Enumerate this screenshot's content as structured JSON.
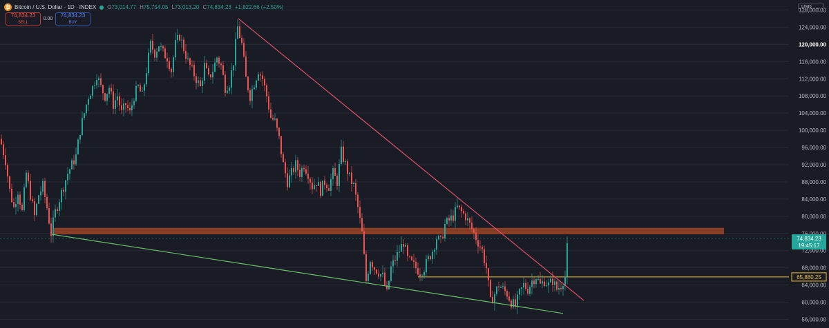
{
  "header": {
    "symbol": "Bitcoin / U.S. Dollar · 1D · INDEX",
    "coin_glyph": "₿",
    "ohlc": [
      {
        "label": "O",
        "value": "73,014.77"
      },
      {
        "label": "H",
        "value": "75,754.05"
      },
      {
        "label": "L",
        "value": "73,013.20"
      },
      {
        "label": "C",
        "value": "74,834.23"
      }
    ],
    "change": "+1,822.66 (+2.50%)"
  },
  "trade": {
    "sell_price": "74,834.23",
    "sell_label": "SELL",
    "spread": "0.00",
    "buy_price": "74,834.23",
    "buy_label": "BUY"
  },
  "currency": "USD",
  "colors": {
    "background": "#1a1c25",
    "up": "#26a69a",
    "down": "#ef5350",
    "resistance_line": "#e0506c",
    "support_line": "#6abf69",
    "zone": "#b34b25",
    "level_line": "#f2c12e"
  },
  "chart_data": {
    "type": "candlestick",
    "ylim": [
      54000,
      130000
    ],
    "y_ticks": [
      56000,
      60000,
      64000,
      68000,
      72000,
      76000,
      80000,
      84000,
      88000,
      92000,
      96000,
      100000,
      104000,
      108000,
      112000,
      116000,
      120000,
      124000,
      128000
    ],
    "y_tick_labels": [
      "56,000.00",
      "60,000.00",
      "64,000.00",
      "68,000.00",
      "72,000.00",
      "76,000.00",
      "80,000.00",
      "84,000.00",
      "88,000.00",
      "92,000.00",
      "96,000.00",
      "100,000.00",
      "104,000.00",
      "108,000.00",
      "112,000.00",
      "116,000.00",
      "120,000.00",
      "124,000.00",
      "128,000.00"
    ],
    "bold_tick": 120000,
    "price_path": [
      [
        0,
        98000
      ],
      [
        8,
        93000
      ],
      [
        14,
        86000
      ],
      [
        20,
        82000
      ],
      [
        26,
        86000
      ],
      [
        32,
        81000
      ],
      [
        38,
        90000
      ],
      [
        44,
        85000
      ],
      [
        50,
        80000
      ],
      [
        56,
        85000
      ],
      [
        62,
        87000
      ],
      [
        68,
        82000
      ],
      [
        74,
        76000
      ],
      [
        80,
        81000
      ],
      [
        86,
        84000
      ],
      [
        92,
        87000
      ],
      [
        98,
        90000
      ],
      [
        104,
        92000
      ],
      [
        110,
        94000
      ],
      [
        116,
        100000
      ],
      [
        122,
        104000
      ],
      [
        128,
        108000
      ],
      [
        134,
        110000
      ],
      [
        140,
        113000
      ],
      [
        146,
        110000
      ],
      [
        152,
        108000
      ],
      [
        158,
        110000
      ],
      [
        164,
        106000
      ],
      [
        170,
        108000
      ],
      [
        176,
        104000
      ],
      [
        182,
        106000
      ],
      [
        188,
        104000
      ],
      [
        194,
        108000
      ],
      [
        200,
        110000
      ],
      [
        206,
        108000
      ],
      [
        212,
        114000
      ],
      [
        218,
        120000
      ],
      [
        224,
        118000
      ],
      [
        230,
        120000
      ],
      [
        236,
        118000
      ],
      [
        242,
        117000
      ],
      [
        248,
        114000
      ],
      [
        254,
        120000
      ],
      [
        260,
        122000
      ],
      [
        266,
        119000
      ],
      [
        272,
        116000
      ],
      [
        278,
        114000
      ],
      [
        284,
        112000
      ],
      [
        290,
        110000
      ],
      [
        296,
        115000
      ],
      [
        302,
        112000
      ],
      [
        308,
        114000
      ],
      [
        314,
        117000
      ],
      [
        320,
        115000
      ],
      [
        326,
        110000
      ],
      [
        332,
        111000
      ],
      [
        338,
        116000
      ],
      [
        344,
        124000
      ],
      [
        350,
        120000
      ],
      [
        356,
        112000
      ],
      [
        362,
        108000
      ],
      [
        368,
        111000
      ],
      [
        374,
        114000
      ],
      [
        380,
        112000
      ],
      [
        386,
        108000
      ],
      [
        392,
        103000
      ],
      [
        398,
        102000
      ],
      [
        404,
        98000
      ],
      [
        410,
        92000
      ],
      [
        416,
        88000
      ],
      [
        422,
        90000
      ],
      [
        428,
        92000
      ],
      [
        434,
        90000
      ],
      [
        440,
        92000
      ],
      [
        446,
        90000
      ],
      [
        452,
        87000
      ],
      [
        458,
        88000
      ],
      [
        464,
        86000
      ],
      [
        470,
        88000
      ],
      [
        476,
        87000
      ],
      [
        482,
        90000
      ],
      [
        488,
        88000
      ],
      [
        494,
        95000
      ],
      [
        500,
        92000
      ],
      [
        506,
        89000
      ],
      [
        512,
        87000
      ],
      [
        518,
        82000
      ],
      [
        524,
        76000
      ],
      [
        530,
        65000
      ],
      [
        536,
        70000
      ],
      [
        542,
        68000
      ],
      [
        548,
        67000
      ],
      [
        554,
        66000
      ],
      [
        560,
        62000
      ],
      [
        566,
        68000
      ],
      [
        572,
        70000
      ],
      [
        578,
        72000
      ],
      [
        584,
        74000
      ],
      [
        590,
        70000
      ],
      [
        596,
        69000
      ],
      [
        602,
        68000
      ],
      [
        608,
        67000
      ],
      [
        614,
        68000
      ],
      [
        620,
        70000
      ],
      [
        626,
        72000
      ],
      [
        632,
        75000
      ],
      [
        638,
        74000
      ],
      [
        644,
        78000
      ],
      [
        650,
        79000
      ],
      [
        656,
        80000
      ],
      [
        662,
        82000
      ],
      [
        668,
        81000
      ],
      [
        674,
        80000
      ],
      [
        680,
        78000
      ],
      [
        686,
        76000
      ],
      [
        692,
        74000
      ],
      [
        698,
        72000
      ],
      [
        704,
        68000
      ],
      [
        710,
        60000
      ],
      [
        716,
        62000
      ],
      [
        722,
        64000
      ],
      [
        728,
        63000
      ],
      [
        734,
        62000
      ],
      [
        740,
        60000
      ],
      [
        746,
        59000
      ],
      [
        752,
        62000
      ],
      [
        758,
        64000
      ],
      [
        764,
        63000
      ],
      [
        770,
        65000
      ],
      [
        776,
        66000
      ],
      [
        782,
        64000
      ],
      [
        788,
        65000
      ],
      [
        794,
        64000
      ],
      [
        800,
        65000
      ],
      [
        806,
        63000
      ],
      [
        812,
        64000
      ],
      [
        818,
        66000
      ],
      [
        822,
        74834
      ]
    ],
    "last_price": "74,834.23",
    "countdown": "19:45:17",
    "level_line": {
      "price": 65880.25,
      "label": "65,880.25"
    },
    "resistance_zone": [
      75800,
      77300
    ],
    "trendlines": {
      "resistance": [
        [
          345,
          126000
        ],
        [
          845,
          60400
        ]
      ],
      "support": [
        [
          75,
          75800
        ],
        [
          815,
          57400
        ]
      ]
    }
  }
}
